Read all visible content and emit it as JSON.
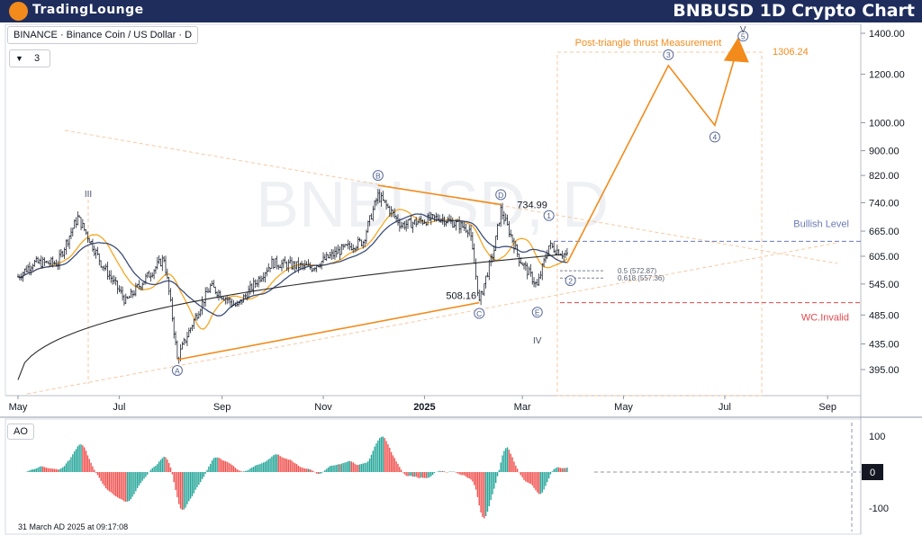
{
  "header": {
    "logo_text": "TradingLounge",
    "title": "BNBUSD 1D Crypto Chart"
  },
  "symbol_label": "BINANCE · Binance Coin / US Dollar · D",
  "interval_value": "3",
  "indicator_label": "AO",
  "timestamp": "31 March AD 2025 at 09:17:08",
  "watermark": "BNBUSD, D",
  "colors": {
    "header_bg": "#1e2d5c",
    "logo_orange": "#f28b1c",
    "wave_orange": "#f28b1c",
    "bullish_level": "#6b7bb5",
    "invalid_red": "#e5484d",
    "ao_green": "#26a69a",
    "ao_red": "#ef5350",
    "ema_orange": "#f5a623",
    "sma_navy": "#3d4e7a",
    "long_ma": "#2b2b2b"
  },
  "chart_data": {
    "type": "line",
    "scale": "log",
    "title": "BNBUSD 1D Crypto Chart",
    "x_axis": {
      "ticks": [
        "May",
        "Jul",
        "Sep",
        "Nov",
        "2025",
        "Mar",
        "May",
        "Jul",
        "Sep"
      ],
      "range": [
        "2024-05-01",
        "2025-09-15"
      ]
    },
    "y_axis": {
      "ticks": [
        "1400.00",
        "1200.00",
        "1000.00",
        "900.00",
        "820.00",
        "740.00",
        "665.00",
        "605.00",
        "545.00",
        "485.00",
        "435.00",
        "395.00"
      ],
      "range": [
        360,
        1450
      ]
    },
    "price_labels": [
      "734.99",
      "508.16",
      "1306.24"
    ],
    "annotations": {
      "thrust_label": "Post-triangle thrust Measurement",
      "bullish_level": "Bullish Level",
      "invalid_level": "WC.Invalid",
      "fib_05": "0.5 (572.87)",
      "fib_0618": "0.618 (557.36)"
    },
    "wave_labels": {
      "triangle": [
        "A",
        "B",
        "C",
        "D",
        "E"
      ],
      "impulse": [
        "1",
        "2",
        "3",
        "4",
        "5"
      ],
      "degree": [
        "III",
        "IV",
        "V"
      ]
    },
    "key_levels": {
      "bullish_level": 640,
      "fib_05": 572.87,
      "fib_0618": 557.36,
      "invalid_level": 508
    },
    "projected_path": [
      {
        "date": "2025-03-28",
        "price": 590
      },
      {
        "date": "2025-05-28",
        "price": 1240
      },
      {
        "date": "2025-06-25",
        "price": 990
      },
      {
        "date": "2025-07-08",
        "price": 1306.24
      }
    ],
    "ao_axis": {
      "ticks": [
        "100",
        "0",
        "-100"
      ]
    }
  }
}
